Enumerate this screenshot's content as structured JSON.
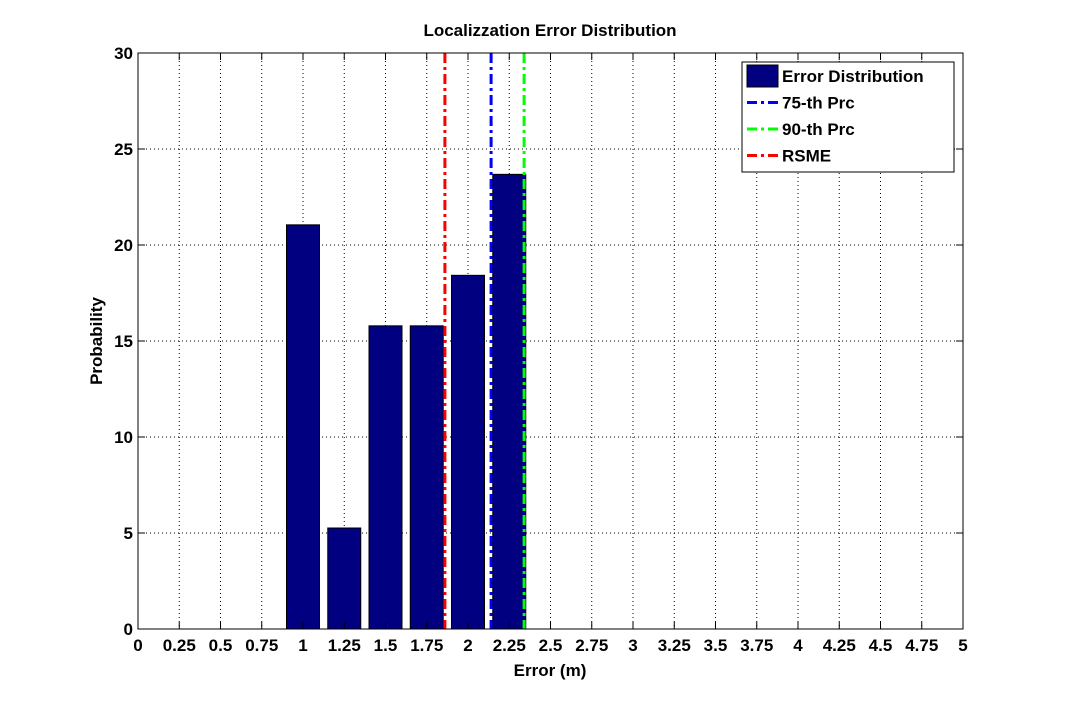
{
  "chart_data": {
    "type": "bar",
    "title": "Localizzation Error Distribution",
    "xlabel": "Error (m)",
    "ylabel": "Probability",
    "xlim": [
      0,
      5
    ],
    "ylim": [
      0,
      30
    ],
    "x_ticks": [
      "0",
      "0.25",
      "0.5",
      "0.75",
      "1",
      "1.25",
      "1.5",
      "1.75",
      "2",
      "2.25",
      "2.5",
      "2.75",
      "3",
      "3.25",
      "3.5",
      "3.75",
      "4",
      "4.25",
      "4.5",
      "4.75",
      "5"
    ],
    "y_ticks": [
      "0",
      "5",
      "10",
      "15",
      "20",
      "25",
      "30"
    ],
    "grid": true,
    "legend_position": "top-right",
    "series": [
      {
        "name": "Error Distribution",
        "type": "bar",
        "color": "#000080",
        "x": [
          1.0,
          1.25,
          1.5,
          1.75,
          2.0,
          2.25
        ],
        "values": [
          21.05,
          5.26,
          15.79,
          15.79,
          18.42,
          23.68
        ]
      }
    ],
    "reference_lines": [
      {
        "name": "75-th Prc",
        "x": 2.14,
        "color": "#0000ff",
        "style": "dash-dot"
      },
      {
        "name": "90-th Prc",
        "x": 2.34,
        "color": "#00ff00",
        "style": "dash-dot"
      },
      {
        "name": "RSME",
        "x": 1.86,
        "color": "#ff0000",
        "style": "dash-dot"
      }
    ],
    "legend": [
      "Error Distribution",
      "75-th Prc",
      "90-th Prc",
      "RSME"
    ]
  }
}
